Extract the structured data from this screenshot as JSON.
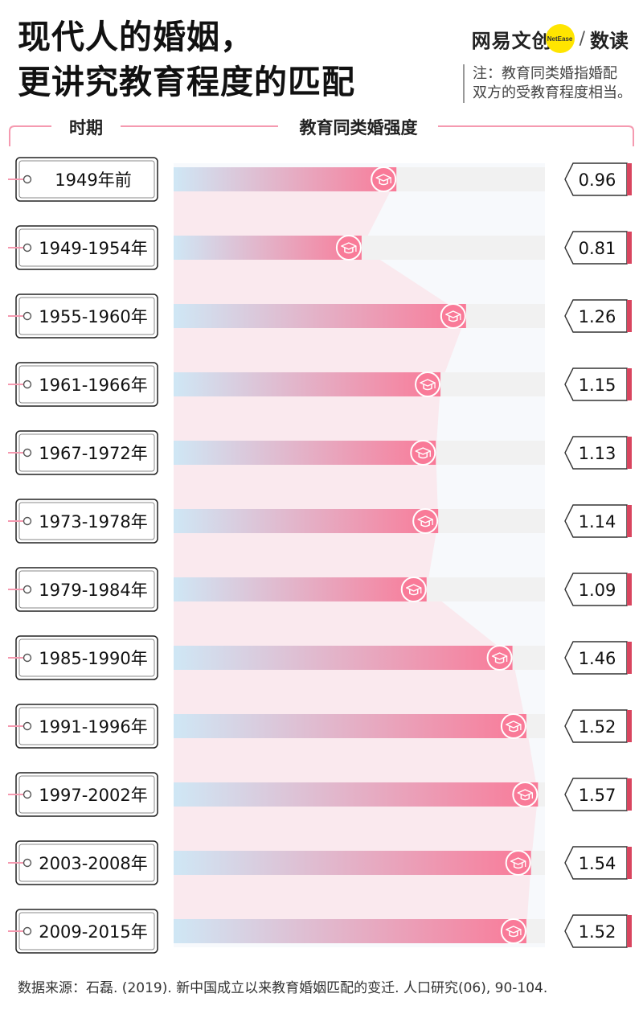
{
  "header": {
    "title_line1": "现代人的婚姻，",
    "title_line2": "更讲究教育程度的匹配",
    "brand_name": "网易文创",
    "brand_badge": "NetEase",
    "brand_slash": "/",
    "brand_sub": "数读",
    "note_line1": "注：教育同类婚指婚配",
    "note_line2": "双方的受教育程度相当。"
  },
  "footer": {
    "source": "数据来源：石磊. (2019). 新中国成立以来教育婚姻匹配的变迁. 人口研究(06), 90-104."
  },
  "chart_data": {
    "type": "bar",
    "orientation": "horizontal",
    "category_header": "时期",
    "value_header": "教育同类婚强度",
    "categories": [
      "1949年前",
      "1949-1954年",
      "1955-1960年",
      "1961-1966年",
      "1967-1972年",
      "1973-1978年",
      "1979-1984年",
      "1985-1990年",
      "1991-1996年",
      "1997-2002年",
      "2003-2008年",
      "2009-2015年"
    ],
    "values": [
      0.96,
      0.81,
      1.26,
      1.15,
      1.13,
      1.14,
      1.09,
      1.46,
      1.52,
      1.57,
      1.54,
      1.52
    ],
    "value_labels": [
      "0.96",
      "0.81",
      "1.26",
      "1.15",
      "1.13",
      "1.14",
      "1.09",
      "1.46",
      "1.52",
      "1.57",
      "1.54",
      "1.52"
    ],
    "xlim": [
      0,
      1.6
    ],
    "colors": {
      "bar_start": "#cfe7f5",
      "bar_end": "#f97a98",
      "track": "#f1f1f1",
      "accent": "#f59ab0",
      "label_border": "#222222",
      "value_edge": "#d9455f"
    }
  }
}
